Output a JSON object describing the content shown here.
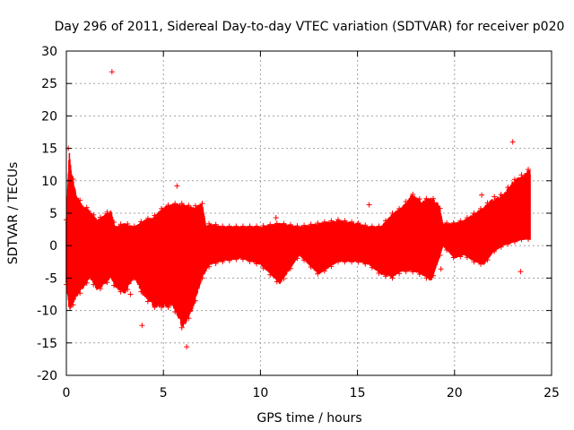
{
  "chart_data": {
    "type": "scatter",
    "title": "Day 296 of 2011, Sidereal Day-to-day VTEC variation (SDTVAR) for receiver p020",
    "xlabel": "GPS time / hours",
    "ylabel": "SDTVAR / TECUs",
    "xlim": [
      0,
      25
    ],
    "ylim": [
      -20,
      30
    ],
    "xticks": [
      0,
      5,
      10,
      15,
      20,
      25
    ],
    "yticks": [
      -20,
      -15,
      -10,
      -5,
      0,
      5,
      10,
      15,
      20,
      25,
      30
    ],
    "grid": true,
    "marker": "+",
    "color": "#ff0000",
    "series": [
      {
        "name": "SDTVAR",
        "envelope": {
          "x": [
            0.0,
            0.15,
            0.3,
            0.5,
            0.8,
            1.2,
            1.6,
            2.0,
            2.3,
            2.5,
            3.0,
            3.5,
            4.0,
            4.5,
            5.0,
            5.5,
            6.0,
            6.5,
            7.0,
            7.2,
            7.4,
            8.0,
            9.0,
            10.0,
            11.0,
            12.0,
            13.0,
            14.0,
            15.0,
            15.6,
            16.2,
            16.8,
            17.3,
            17.8,
            18.3,
            18.8,
            19.2,
            19.4,
            20.0,
            20.5,
            21.0,
            21.5,
            22.0,
            22.5,
            23.0,
            23.5,
            23.9
          ],
          "upper": [
            4.0,
            14.5,
            11.0,
            8.0,
            6.5,
            5.5,
            4.0,
            5.0,
            5.5,
            3.0,
            3.5,
            3.0,
            4.0,
            4.5,
            6.0,
            6.5,
            6.5,
            6.0,
            6.5,
            3.0,
            3.5,
            3.0,
            3.0,
            3.0,
            3.5,
            3.0,
            3.5,
            4.0,
            3.5,
            3.0,
            3.0,
            5.0,
            6.0,
            8.0,
            7.0,
            7.5,
            6.5,
            3.5,
            3.5,
            4.0,
            5.0,
            6.0,
            7.5,
            8.0,
            10.0,
            11.0,
            12.0
          ],
          "lower": [
            -6.0,
            -10.0,
            -9.5,
            -8.0,
            -7.0,
            -5.0,
            -7.0,
            -6.0,
            -5.0,
            -6.5,
            -7.5,
            -5.0,
            -8.0,
            -9.5,
            -9.5,
            -9.5,
            -13.0,
            -10.0,
            -5.0,
            -4.0,
            -3.0,
            -2.5,
            -2.0,
            -3.0,
            -6.0,
            -1.5,
            -4.5,
            -2.5,
            -2.5,
            -3.0,
            -4.5,
            -5.0,
            -4.0,
            -4.0,
            -4.5,
            -5.5,
            -2.0,
            0.0,
            -2.0,
            -1.5,
            -2.5,
            -3.0,
            -1.0,
            0.0,
            0.5,
            1.0,
            1.0
          ]
        },
        "outliers": [
          {
            "x": 2.35,
            "y": 26.8
          },
          {
            "x": 23.0,
            "y": 16.0
          },
          {
            "x": 5.7,
            "y": 9.2
          },
          {
            "x": 15.6,
            "y": 6.3
          },
          {
            "x": 0.1,
            "y": 15.0
          },
          {
            "x": 21.4,
            "y": 7.8
          },
          {
            "x": 23.4,
            "y": -4.0
          },
          {
            "x": 3.9,
            "y": -12.3
          },
          {
            "x": 6.2,
            "y": -15.6
          },
          {
            "x": 3.3,
            "y": -7.5
          },
          {
            "x": 10.8,
            "y": 4.3
          },
          {
            "x": 19.3,
            "y": -3.6
          }
        ]
      }
    ]
  }
}
